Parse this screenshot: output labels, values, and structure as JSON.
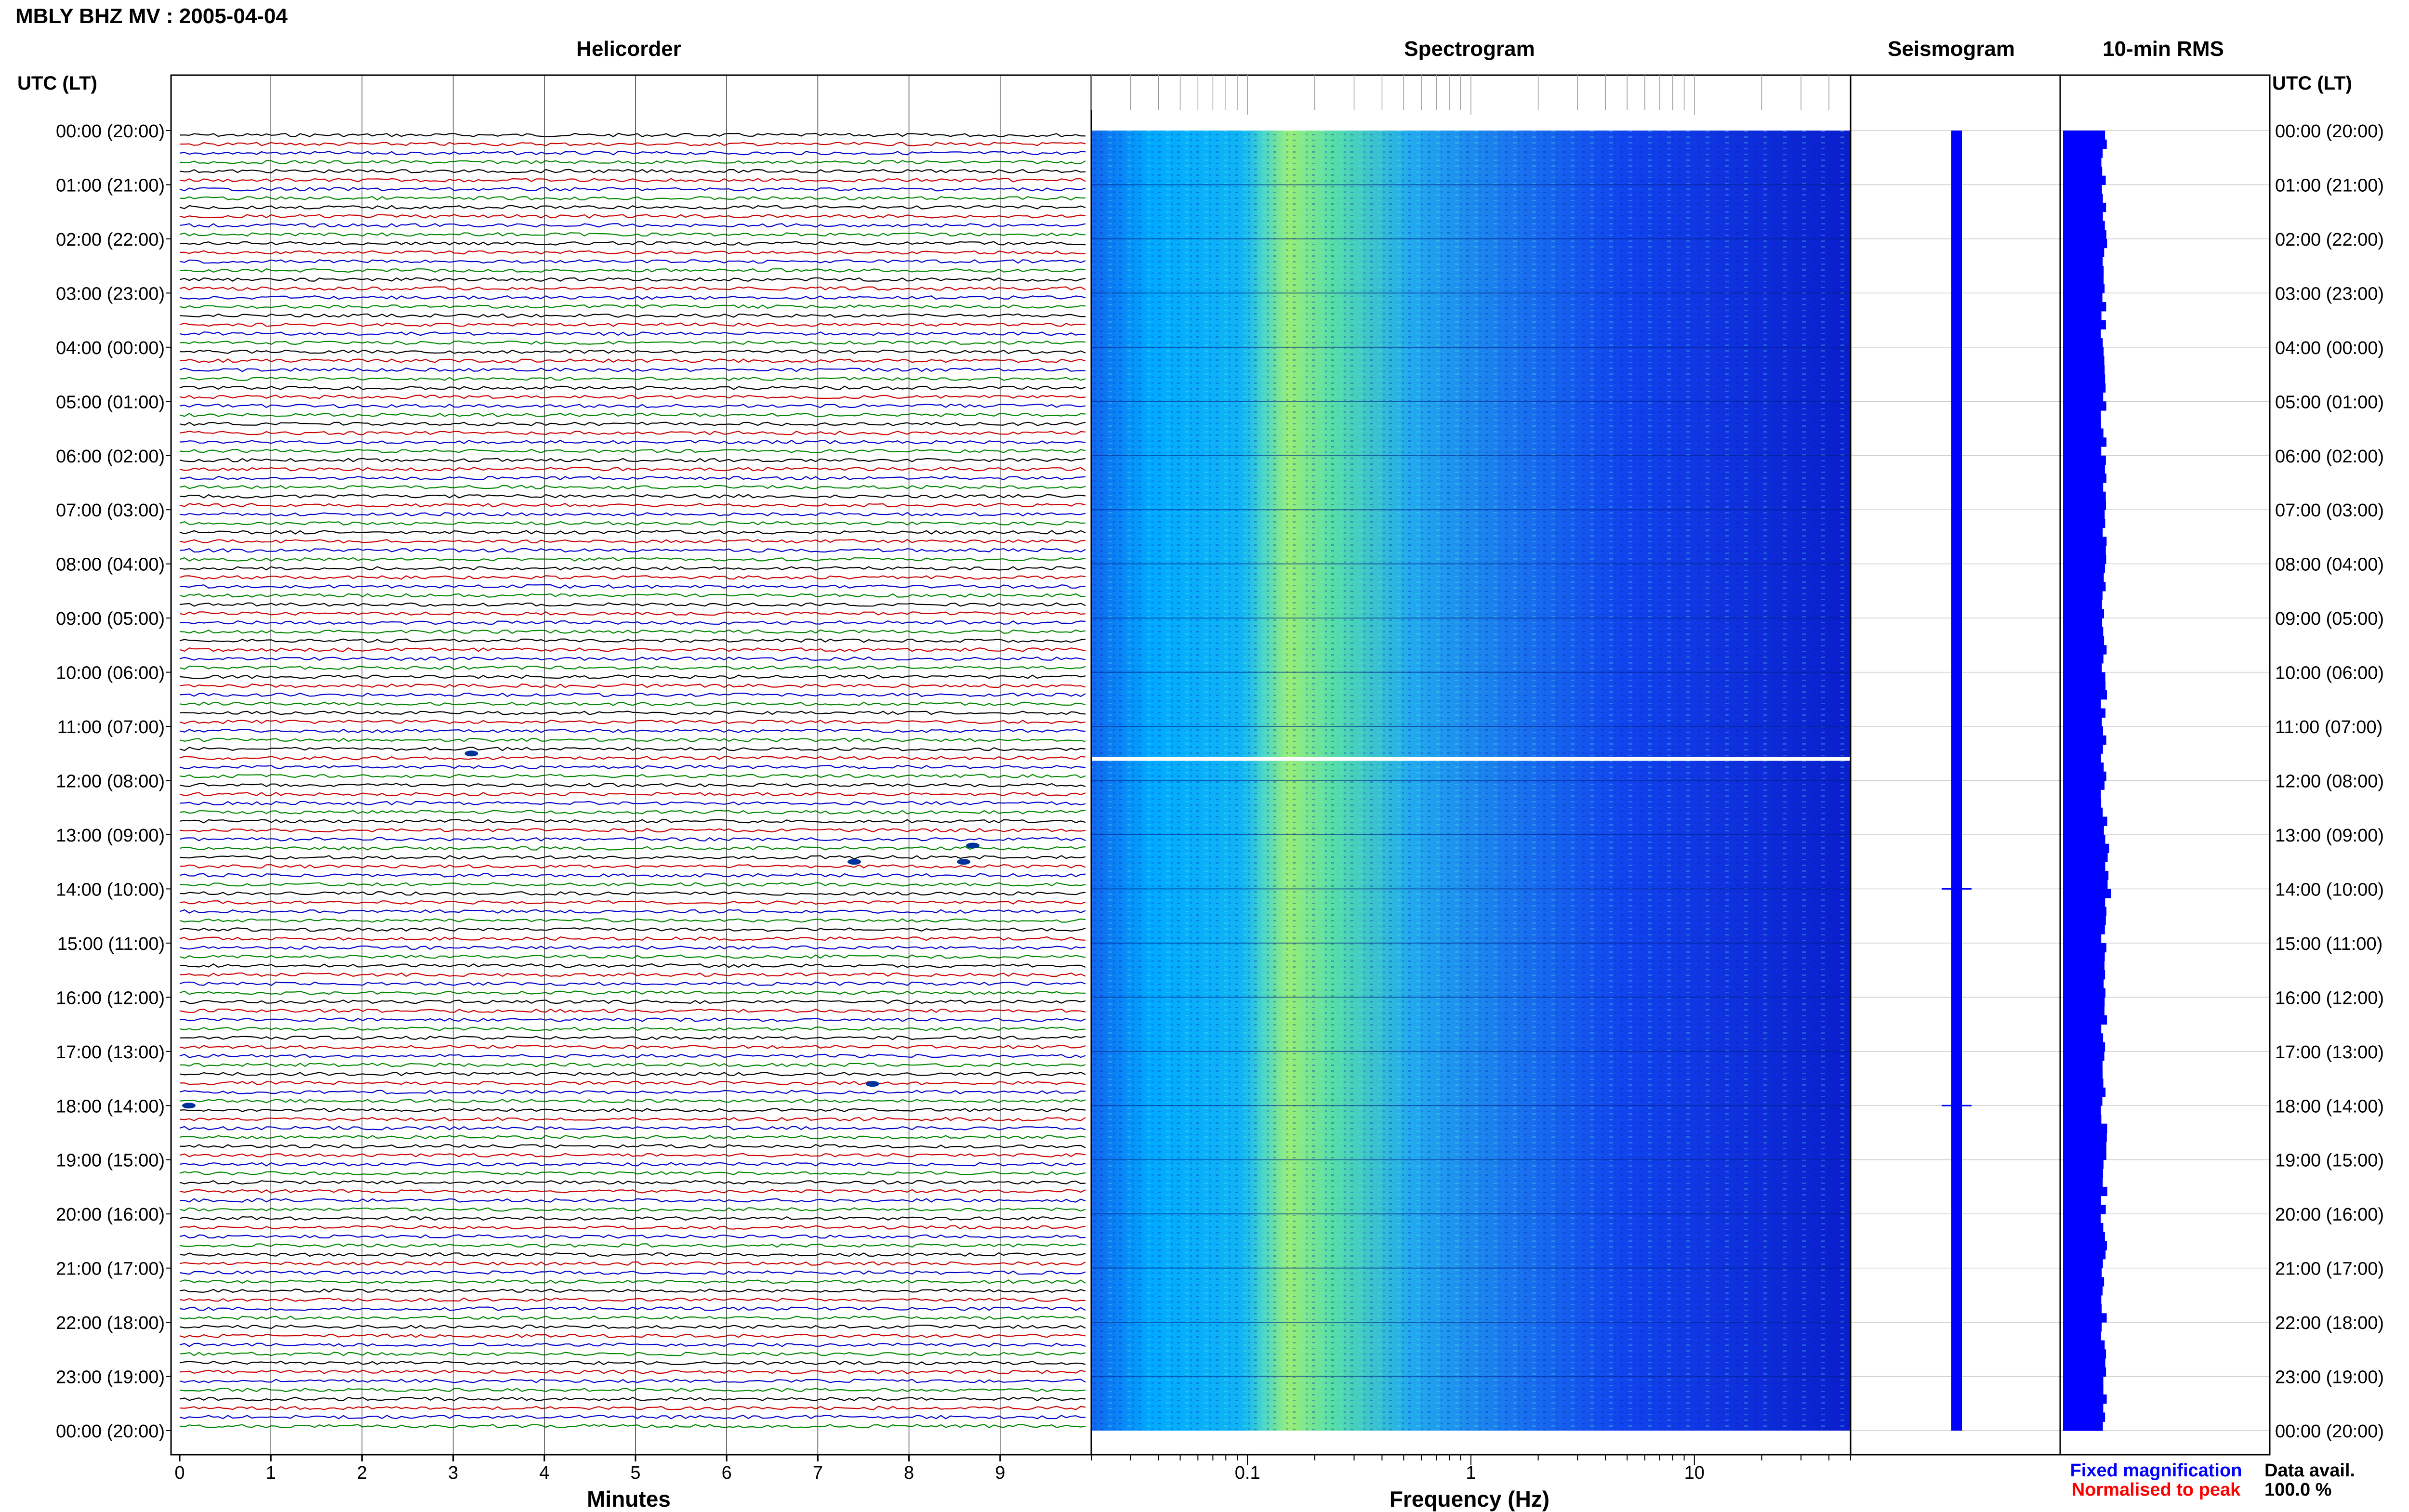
{
  "header": {
    "title": "MBLY BHZ MV : 2005-04-04"
  },
  "panels": {
    "helicorder": "Helicorder",
    "spectrogram": "Spectrogram",
    "seismogram": "Seismogram",
    "rms": "10-min RMS"
  },
  "axis_labels": {
    "time_left": "UTC (LT)",
    "time_right": "UTC (LT)",
    "minutes": "Minutes",
    "frequency": "Frequency (Hz)"
  },
  "legend": {
    "fixed": "Fixed magnification",
    "normalised": "Normalised to peak",
    "fixed_color": "#0000ff",
    "normalised_color": "#ff0000"
  },
  "data_availability": {
    "label": "Data avail.",
    "value": "100.0 %"
  },
  "chart_data": [
    {
      "type": "line",
      "name": "helicorder",
      "xlabel": "Minutes",
      "xlim": [
        0,
        10
      ],
      "x_ticks": [
        "0",
        "1",
        "2",
        "3",
        "4",
        "5",
        "6",
        "7",
        "8",
        "9"
      ],
      "y_ticks": [
        "00:00 (20:00)",
        "01:00 (21:00)",
        "02:00 (22:00)",
        "03:00 (23:00)",
        "04:00 (00:00)",
        "05:00 (01:00)",
        "06:00 (02:00)",
        "07:00 (03:00)",
        "08:00 (04:00)",
        "09:00 (05:00)",
        "10:00 (06:00)",
        "11:00 (07:00)",
        "12:00 (08:00)",
        "13:00 (09:00)",
        "14:00 (10:00)",
        "15:00 (11:00)",
        "16:00 (12:00)",
        "17:00 (13:00)",
        "18:00 (14:00)",
        "19:00 (15:00)",
        "20:00 (16:00)",
        "21:00 (17:00)",
        "22:00 (18:00)",
        "23:00 (19:00)",
        "00:00 (20:00)"
      ],
      "ylim_hours": [
        0,
        24
      ],
      "trace_interval_minutes": 10,
      "trace_colors": [
        "#000000",
        "#cc0000",
        "#0000cc",
        "#008800"
      ],
      "events": [
        {
          "hour": 11.5,
          "minute": 3.2
        },
        {
          "hour": 13.2,
          "minute": 8.7
        },
        {
          "hour": 13.5,
          "minute": 7.4
        },
        {
          "hour": 13.5,
          "minute": 8.6
        },
        {
          "hour": 17.6,
          "minute": 7.6
        },
        {
          "hour": 18.0,
          "minute": 0.1
        }
      ]
    },
    {
      "type": "heatmap",
      "name": "spectrogram",
      "xlabel": "Frequency (Hz)",
      "x_scale": "log",
      "xlim": [
        0.02,
        50
      ],
      "x_ticks": [
        "0.1",
        "1",
        "10"
      ],
      "ylim_hours": [
        0,
        24
      ],
      "peak_band_hz": [
        0.15,
        0.35
      ],
      "data_gap_hour": 11.6,
      "colormap": [
        "#0000aa",
        "#0044ff",
        "#00aaff",
        "#33ddcc",
        "#aaff66"
      ]
    },
    {
      "type": "line",
      "name": "seismogram",
      "ylim_hours": [
        0,
        24
      ],
      "events_hours": [
        14.0,
        18.0
      ]
    },
    {
      "type": "bar",
      "name": "10-min RMS",
      "ylim_hours": [
        0,
        24
      ],
      "bar_color": "#0000ff"
    }
  ]
}
